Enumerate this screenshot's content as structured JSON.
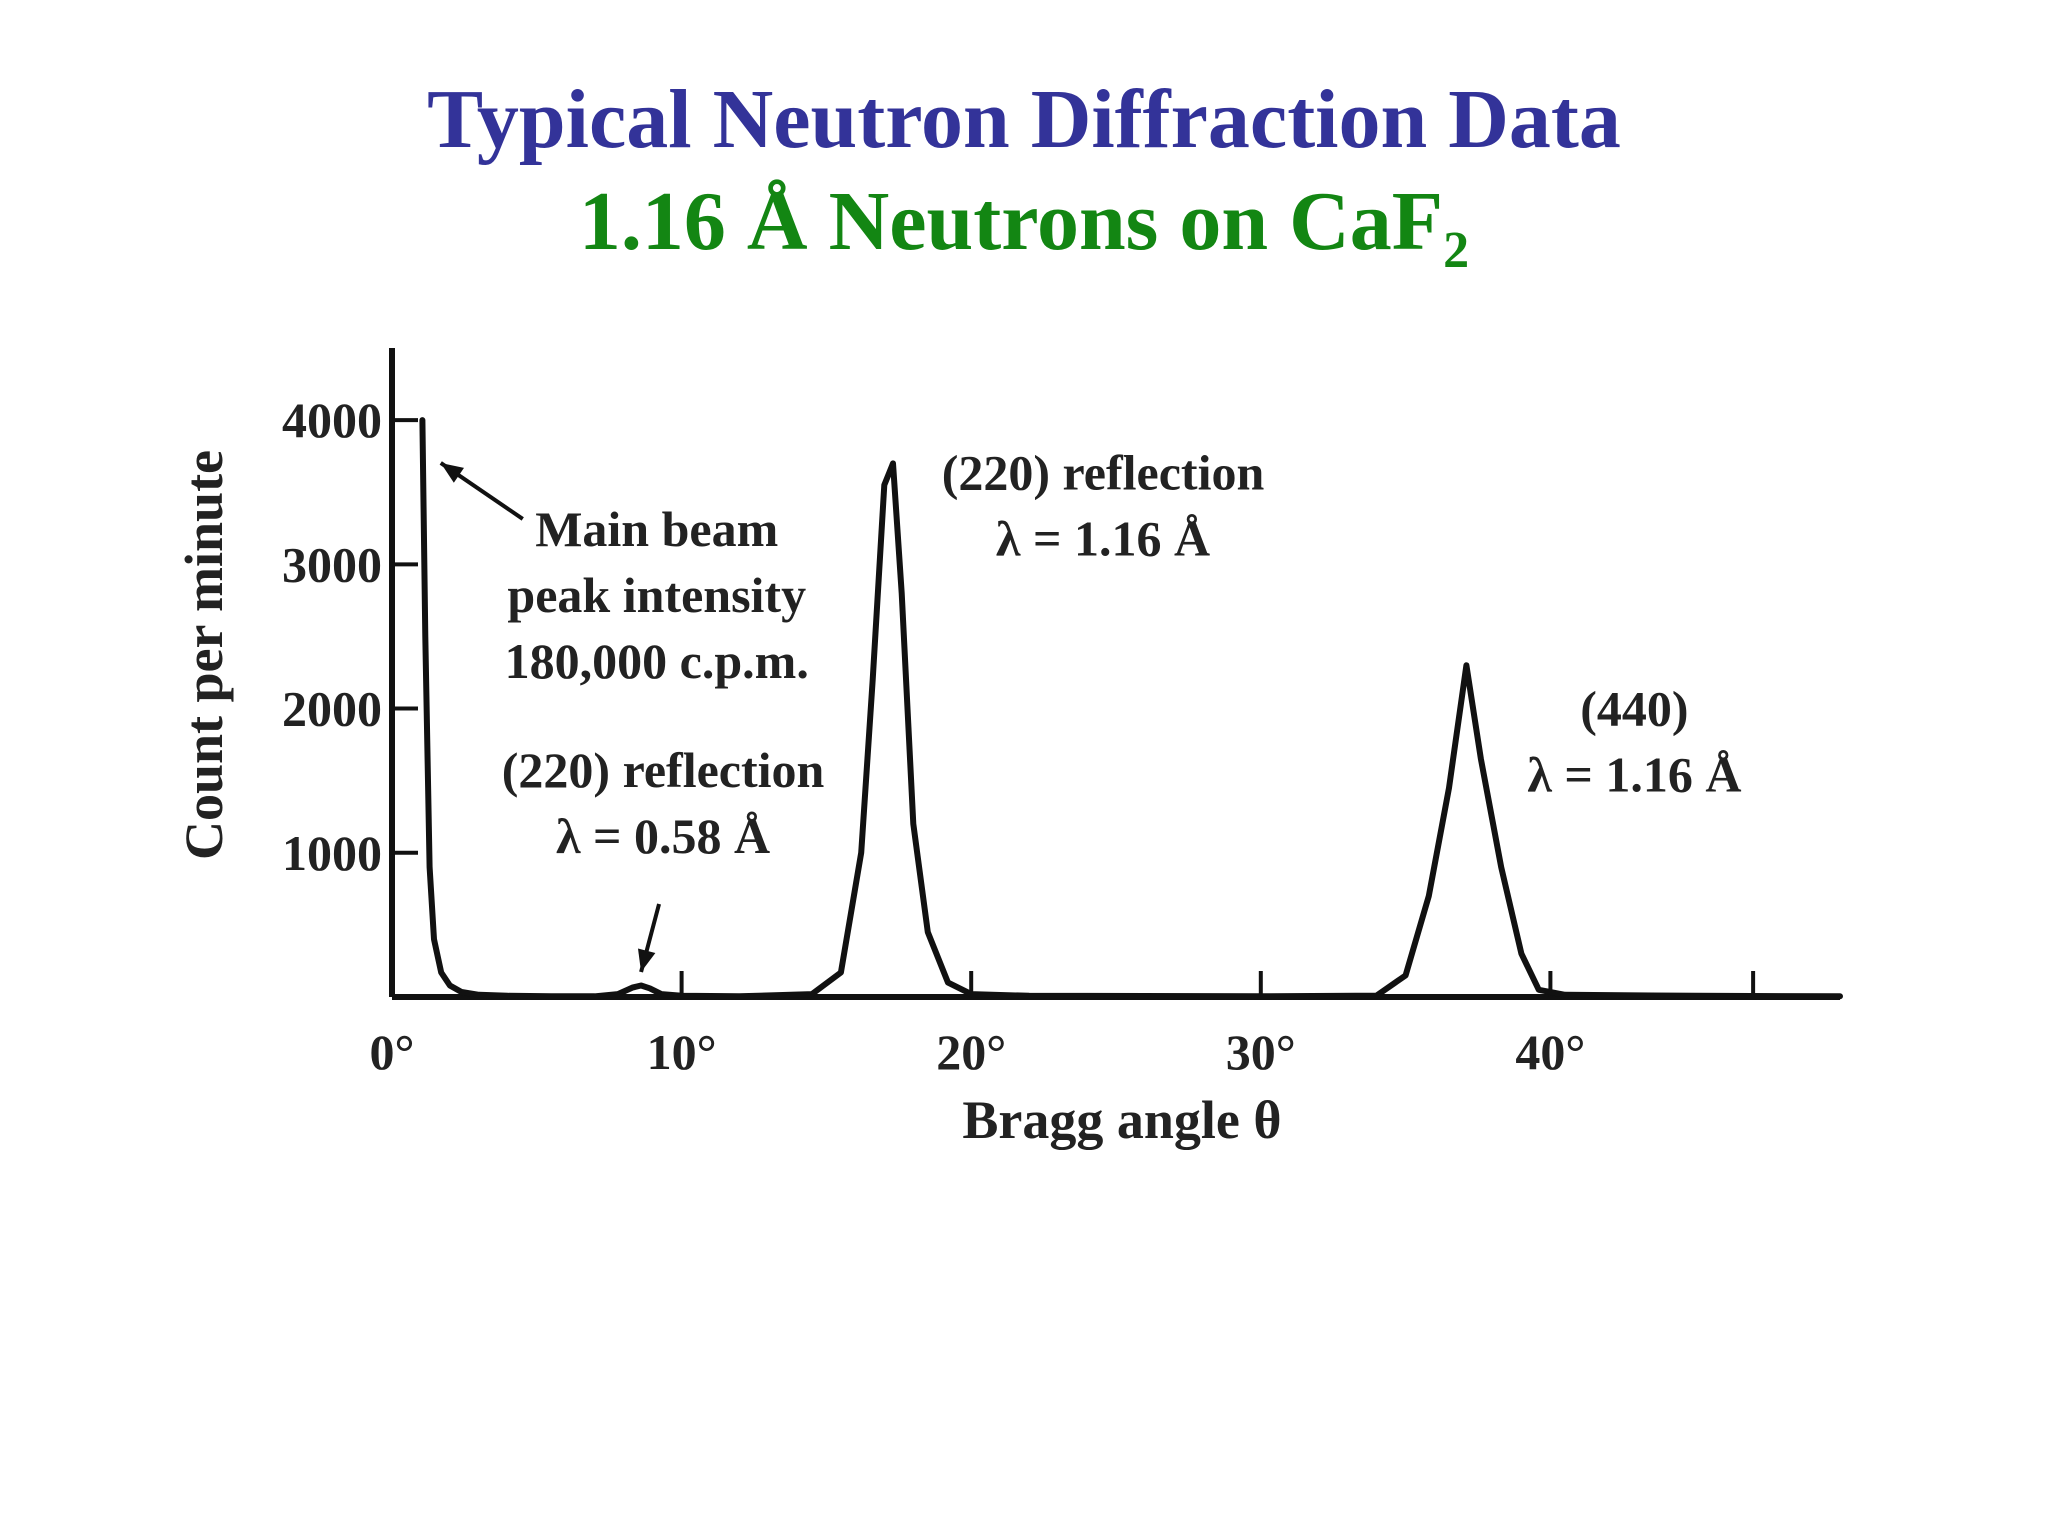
{
  "slide": {
    "title": "Typical Neutron Diffraction Data",
    "subtitle_main": "1.16 Å Neutrons on CaF",
    "subtitle_sub": "2",
    "title_color": "#333399",
    "subtitle_color": "#138613"
  },
  "chart_data": {
    "type": "line",
    "title": "",
    "xlabel": "Bragg angle θ",
    "ylabel": "Count per minute",
    "xlim": [
      0,
      50
    ],
    "ylim": [
      0,
      4500
    ],
    "x_ticks": [
      0,
      10,
      20,
      30,
      40
    ],
    "x_tick_labels": [
      "0°",
      "10°",
      "20°",
      "30°",
      "40°"
    ],
    "x_minor_ticks": [
      47
    ],
    "y_ticks": [
      1000,
      2000,
      3000,
      4000
    ],
    "y_tick_labels": [
      "1000",
      "2000",
      "3000",
      "4000"
    ],
    "grid": false,
    "series": [
      {
        "x": [
          1.05,
          1.15,
          1.3,
          1.45,
          1.7,
          2.0,
          2.4,
          3.0,
          4.0,
          5.5,
          7.0,
          7.8,
          8.3,
          8.6,
          8.9,
          9.3,
          10.0,
          12.0,
          14.5,
          15.5,
          16.2,
          16.6,
          17.0,
          17.3,
          17.6,
          18.0,
          18.5,
          19.2,
          20.0,
          22.0,
          30.0,
          34.0,
          35.0,
          35.8,
          36.5,
          37.1,
          37.6,
          38.3,
          39.0,
          39.6,
          40.5,
          45.0,
          50.0
        ],
        "y": [
          4000,
          2500,
          900,
          400,
          170,
          80,
          35,
          15,
          8,
          5,
          5,
          20,
          65,
          80,
          60,
          20,
          8,
          5,
          20,
          170,
          1000,
          2200,
          3550,
          3700,
          2800,
          1200,
          450,
          100,
          20,
          8,
          5,
          10,
          150,
          700,
          1450,
          2300,
          1650,
          900,
          300,
          50,
          15,
          8,
          5
        ]
      }
    ],
    "annotations": [
      {
        "lines": [
          "Main beam",
          "peak intensity",
          "180,000 c.p.m."
        ],
        "x": 1.2,
        "y": 3800
      },
      {
        "lines": [
          "(220) reflection",
          "λ = 0.58 Å"
        ],
        "x": 8.6,
        "y": 90
      },
      {
        "lines": [
          "(220) reflection",
          "λ = 1.16 Å"
        ],
        "x": 17.3,
        "y": 3700
      },
      {
        "lines": [
          "(440)",
          "λ = 1.16 Å"
        ],
        "x": 37.1,
        "y": 2300
      }
    ]
  }
}
